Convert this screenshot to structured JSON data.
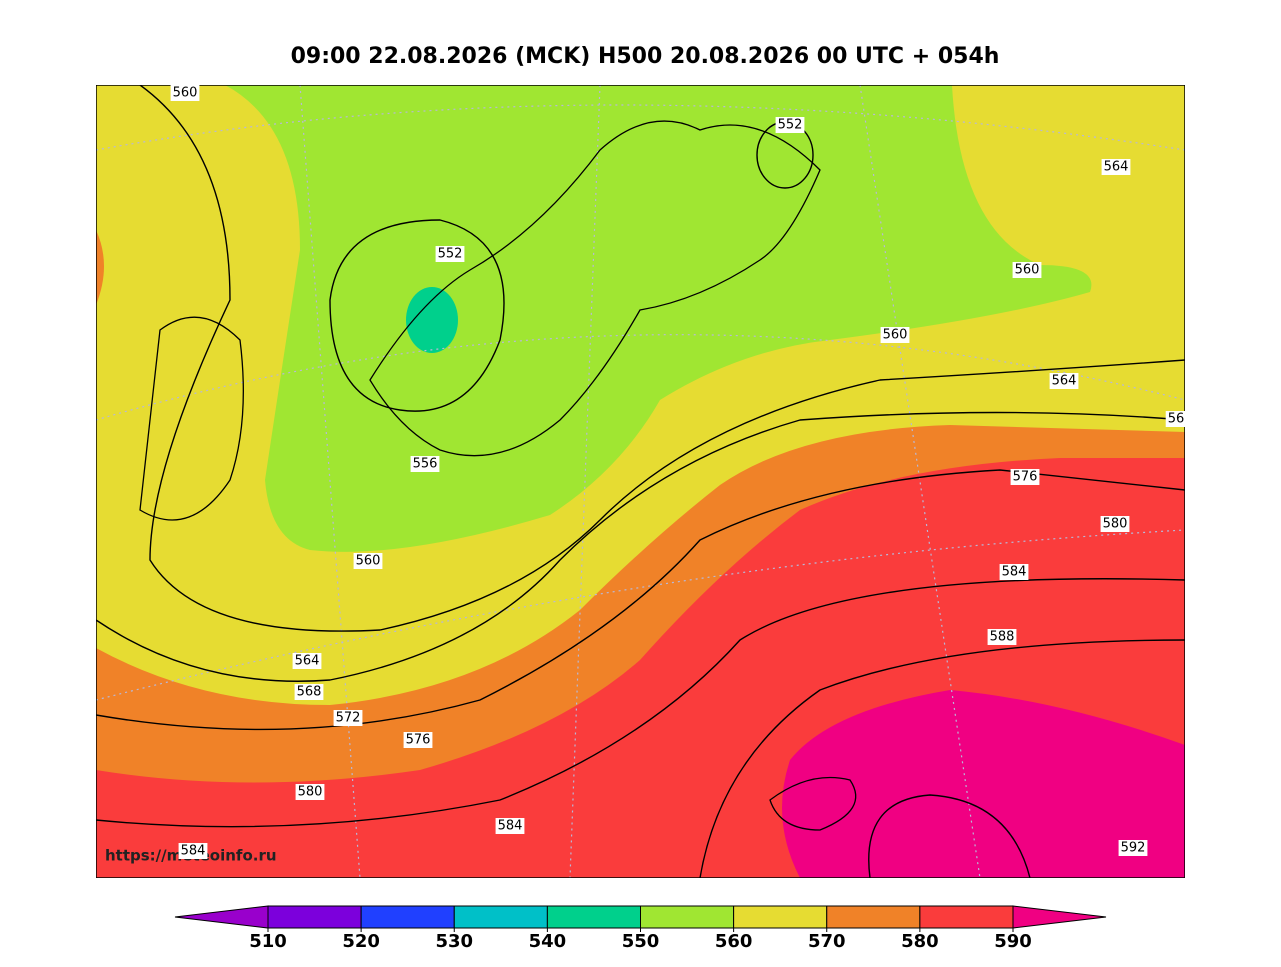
{
  "title": "09:00 22.08.2026 (MCK) H500  20.08.2026 00 UTC + 054h",
  "watermark": "https://meteoinfo.ru",
  "contour_labels": [
    "560",
    "552",
    "564",
    "552",
    "560",
    "560",
    "564",
    "56",
    "556",
    "576",
    "580",
    "560",
    "584",
    "588",
    "564",
    "568",
    "572",
    "576",
    "580",
    "584",
    "584",
    "592"
  ],
  "colorbar": {
    "ticks": [
      510,
      520,
      530,
      540,
      550,
      560,
      570,
      580,
      590
    ],
    "colors": [
      "#7c00dc",
      "#2040ff",
      "#00c0c8",
      "#00d08c",
      "#a0e632",
      "#e6dc32",
      "#f08228",
      "#fa3c3c"
    ],
    "under_color": "#9900cc",
    "over_color": "#f00082"
  }
}
